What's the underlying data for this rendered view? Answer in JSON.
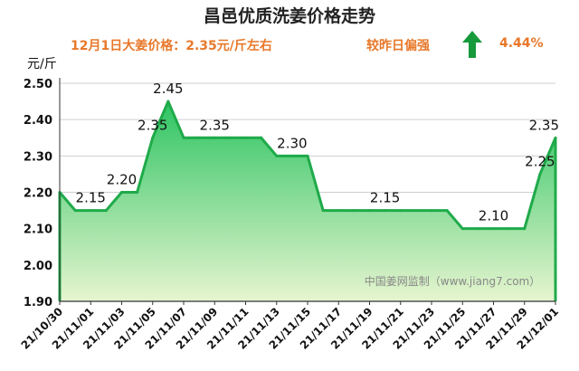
{
  "header": {
    "title": "昌邑优质洗姜价格走势",
    "price_text": "12月1日大姜价格：2.35元/斤左右",
    "compare_label": "较昨日偏强",
    "change_pct": "4.44%",
    "trend_icon": "up-arrow-icon",
    "unit_label": "元/斤"
  },
  "colors": {
    "line": "#1faa4a",
    "fill_top": "#2ec463",
    "fill_bottom": "#e6f5cf",
    "accent_text": "#e8782a",
    "arrow": "#169a3c"
  },
  "chart_data": {
    "type": "area",
    "title": "昌邑优质洗姜价格走势",
    "ylabel": "元/斤",
    "xlabel": "",
    "ylim": [
      1.9,
      2.5
    ],
    "yticks": [
      "2.50",
      "2.40",
      "2.30",
      "2.20",
      "2.10",
      "2.00",
      "1.90"
    ],
    "xticks": [
      "21/10/30",
      "21/11/01",
      "21/11/03",
      "21/11/05",
      "21/11/07",
      "21/11/09",
      "21/11/11",
      "21/11/13",
      "21/11/15",
      "21/11/17",
      "21/11/19",
      "21/11/21",
      "21/11/23",
      "21/11/25",
      "21/11/27",
      "21/11/29",
      "21/12/01"
    ],
    "x": [
      "21/10/30",
      "21/10/31",
      "21/11/01",
      "21/11/02",
      "21/11/03",
      "21/11/04",
      "21/11/05",
      "21/11/06",
      "21/11/07",
      "21/11/08",
      "21/11/09",
      "21/11/10",
      "21/11/11",
      "21/11/12",
      "21/11/13",
      "21/11/14",
      "21/11/15",
      "21/11/16",
      "21/11/17",
      "21/11/18",
      "21/11/19",
      "21/11/20",
      "21/11/21",
      "21/11/22",
      "21/11/23",
      "21/11/24",
      "21/11/25",
      "21/11/26",
      "21/11/27",
      "21/11/28",
      "21/11/29",
      "21/11/30",
      "21/12/01"
    ],
    "values": [
      2.2,
      2.15,
      2.15,
      2.15,
      2.2,
      2.2,
      2.35,
      2.45,
      2.35,
      2.35,
      2.35,
      2.35,
      2.35,
      2.35,
      2.3,
      2.3,
      2.3,
      2.15,
      2.15,
      2.15,
      2.15,
      2.15,
      2.15,
      2.15,
      2.15,
      2.15,
      2.1,
      2.1,
      2.1,
      2.1,
      2.1,
      2.25,
      2.35
    ],
    "data_labels": [
      {
        "index": 2,
        "text": "2.15"
      },
      {
        "index": 4,
        "text": "2.20"
      },
      {
        "index": 6,
        "text": "2.35"
      },
      {
        "index": 7,
        "text": "2.45"
      },
      {
        "index": 10,
        "text": "2.35"
      },
      {
        "index": 15,
        "text": "2.30"
      },
      {
        "index": 21,
        "text": "2.15"
      },
      {
        "index": 28,
        "text": "2.10"
      },
      {
        "index": 31,
        "text": "2.25"
      },
      {
        "index": 32,
        "text": "2.35"
      }
    ],
    "watermark": "中国姜网监制（www.jiang7.com）",
    "grid": true
  }
}
